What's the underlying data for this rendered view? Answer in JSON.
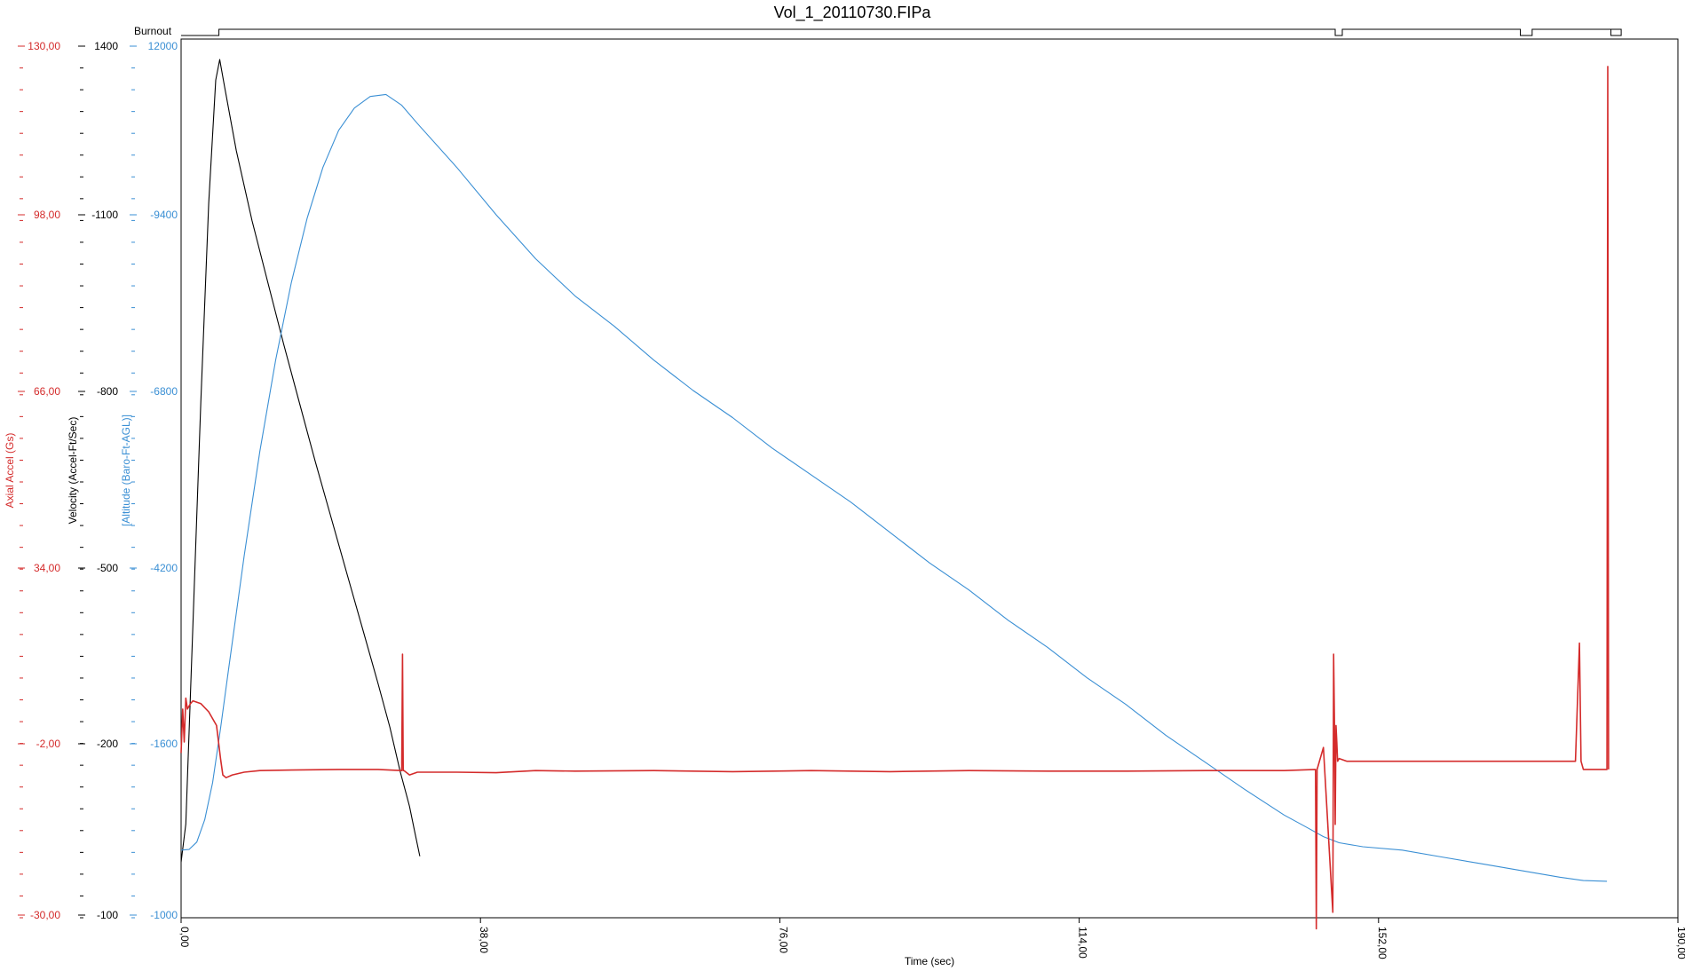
{
  "chart_data": {
    "type": "line",
    "title": "Vol_1_20110730.FIPa",
    "xlabel": "Time (sec)",
    "xlim": [
      0,
      190
    ],
    "x_ticks": [
      "0,00",
      "38,00",
      "76,00",
      "114,00",
      "152,00",
      "190,00"
    ],
    "grid": false,
    "axes": [
      {
        "id": "accel",
        "label": "Axial Accel (Gs)",
        "color": "#d42b2b",
        "ylim": [
          -30,
          130
        ],
        "ticks": [
          "130,00",
          "98,00",
          "66,00",
          "34,00",
          "-2,00",
          "-30,00"
        ]
      },
      {
        "id": "velocity",
        "label": "Velocity (Accel-Ft/Sec)",
        "color": "#000000",
        "ylim": [
          -100,
          1400
        ],
        "ticks": [
          "1400",
          "-1100",
          "-800",
          "-500",
          "-200",
          "-100"
        ]
      },
      {
        "id": "altitude",
        "label": "[Altitude (Baro-Ft-AGL)]",
        "color": "#3a8fd4",
        "ylim": [
          -1000,
          12000
        ],
        "ticks": [
          "12000",
          "-9400",
          "-6800",
          "-4200",
          "-1600",
          "-1000"
        ]
      }
    ],
    "event_track": {
      "label": "Burnout",
      "color": "#000000",
      "segments": [
        {
          "x": 0,
          "state": 0
        },
        {
          "x": 4.8,
          "state": 1
        },
        {
          "x": 146.5,
          "state": 0
        },
        {
          "x": 147.4,
          "state": 1
        },
        {
          "x": 170,
          "state": 0
        },
        {
          "x": 171.5,
          "state": 1
        },
        {
          "x": 181.5,
          "state": 0
        },
        {
          "x": 182.8,
          "state": 1
        },
        {
          "x": 181.2,
          "state": 1
        }
      ]
    },
    "series": [
      {
        "axis": "velocity",
        "color": "#000000",
        "x": [
          0,
          0.6,
          1.5,
          2.5,
          3.5,
          4.4,
          4.9,
          5.5,
          7,
          9,
          11,
          13,
          15,
          17,
          19,
          21,
          23,
          25,
          26.5,
          27.8,
          28.6,
          29,
          29.6,
          30.3
        ],
        "y": [
          -5,
          60,
          400,
          780,
          1120,
          1330,
          1365,
          1320,
          1210,
          1090,
          985,
          880,
          780,
          680,
          585,
          490,
          395,
          300,
          225,
          150,
          110,
          90,
          50,
          5
        ]
      },
      {
        "axis": "altitude",
        "color": "#3a8fd4",
        "x": [
          0,
          1,
          2,
          3,
          4,
          5,
          6,
          7,
          8,
          10,
          12,
          14,
          16,
          18,
          20,
          22,
          24,
          26,
          28,
          30,
          35,
          40,
          45,
          50,
          55,
          60,
          65,
          70,
          75,
          80,
          85,
          90,
          95,
          100,
          105,
          110,
          115,
          120,
          125,
          130,
          135,
          140,
          143,
          145,
          147,
          150,
          155,
          160,
          165,
          170,
          175,
          178,
          181
        ],
        "y": [
          0,
          10,
          120,
          450,
          1000,
          1800,
          2650,
          3500,
          4350,
          5900,
          7250,
          8400,
          9350,
          10100,
          10650,
          10980,
          11150,
          11180,
          11020,
          10750,
          10100,
          9400,
          8750,
          8200,
          7750,
          7250,
          6800,
          6400,
          5950,
          5550,
          5150,
          4700,
          4250,
          3850,
          3400,
          3000,
          2550,
          2150,
          1700,
          1300,
          900,
          520,
          330,
          200,
          110,
          50,
          0,
          -100,
          -200,
          -300,
          -400,
          -450,
          -460
        ]
      },
      {
        "axis": "accel",
        "color": "#d42b2b",
        "x": [
          0,
          0.2,
          0.4,
          0.6,
          0.8,
          1.2,
          1.5,
          2.5,
          3.5,
          4.5,
          5.0,
          5.3,
          5.7,
          6.5,
          8,
          10,
          14,
          20,
          25,
          28,
          28.1,
          28.2,
          28.3,
          29,
          30,
          35,
          40,
          45,
          50,
          60,
          70,
          80,
          90,
          100,
          110,
          120,
          130,
          140,
          144,
          144.1,
          144.2,
          145,
          146.2,
          146.3,
          146.4,
          146.5,
          146.6,
          146.7,
          146.8,
          147,
          148,
          150,
          155,
          160,
          165,
          170,
          175,
          177,
          177.5,
          177.7,
          178,
          180,
          181,
          181.1,
          181.2
        ],
        "y": [
          0,
          8,
          2,
          10,
          8,
          9,
          9.5,
          9,
          7.5,
          5,
          -1,
          -4,
          -4.5,
          -4,
          -3.5,
          -3.2,
          -3.1,
          -3,
          -3,
          -3.2,
          18,
          -3.2,
          -3.2,
          -4,
          -3.5,
          -3.5,
          -3.6,
          -3.2,
          -3.3,
          -3.2,
          -3.4,
          -3.2,
          -3.4,
          -3.2,
          -3.3,
          -3.3,
          -3.2,
          -3.2,
          -3,
          -32,
          -3,
          1,
          -29,
          18,
          6,
          -13,
          5,
          2,
          -1.5,
          -1,
          -1.5,
          -1.5,
          -1.5,
          -1.5,
          -1.5,
          -1.5,
          -1.5,
          -1.5,
          20,
          -1.5,
          -3,
          -3,
          -3,
          125,
          -3
        ]
      }
    ]
  }
}
